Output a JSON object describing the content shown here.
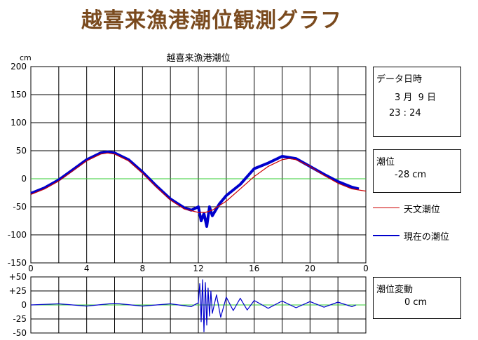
{
  "page": {
    "title": "越喜来漁港潮位観測グラフ"
  },
  "chart_data": [
    {
      "type": "line",
      "title": "越喜来漁港潮位",
      "unit": "cm",
      "xlim": [
        0,
        24
      ],
      "ylim": [
        -150,
        200
      ],
      "x_ticks": [
        "0",
        "4",
        "8",
        "12",
        "16",
        "20",
        "0"
      ],
      "y_ticks": [
        "200",
        "150",
        "100",
        "50",
        "0",
        "-50",
        "-100",
        "-150"
      ],
      "grid": true,
      "legend_placement": "right",
      "series": [
        {
          "name": "天文潮位",
          "color": "#cc0000",
          "x": [
            0,
            1,
            2,
            3,
            4,
            5,
            5.5,
            6,
            7,
            8,
            9,
            10,
            11,
            12,
            12.5,
            13,
            14,
            15,
            16,
            17,
            18,
            18.5,
            19,
            20,
            21,
            22,
            23,
            24
          ],
          "y": [
            -28,
            -18,
            -4,
            14,
            32,
            44,
            46,
            44,
            32,
            10,
            -15,
            -38,
            -54,
            -60,
            -60,
            -56,
            -40,
            -18,
            4,
            22,
            34,
            36,
            34,
            22,
            6,
            -8,
            -18,
            -22
          ]
        },
        {
          "name": "現在の潮位",
          "color": "#0000cc",
          "x": [
            0,
            1,
            2,
            3,
            4,
            5,
            5.5,
            6,
            7,
            8,
            9,
            10,
            11,
            11.5,
            12,
            12.2,
            12.4,
            12.6,
            12.8,
            13,
            13.5,
            14,
            15,
            16,
            17,
            18,
            18.5,
            19,
            20,
            21,
            22,
            23,
            23.5
          ],
          "y": [
            -26,
            -16,
            -2,
            16,
            34,
            46,
            48,
            46,
            34,
            12,
            -13,
            -36,
            -52,
            -56,
            -50,
            -75,
            -62,
            -85,
            -50,
            -66,
            -45,
            -30,
            -10,
            18,
            28,
            40,
            38,
            36,
            22,
            8,
            -5,
            -15,
            -18
          ]
        }
      ]
    },
    {
      "type": "line",
      "xlim": [
        0,
        24
      ],
      "ylim": [
        -50,
        50
      ],
      "y_ticks": [
        "+50",
        "+25",
        "0",
        "-25",
        "-50"
      ],
      "grid": true,
      "series": [
        {
          "name": "潮位変動",
          "color": "#0000cc",
          "x": [
            0,
            2,
            4,
            6,
            8,
            10,
            11.5,
            12,
            12.1,
            12.2,
            12.3,
            12.4,
            12.5,
            12.6,
            12.7,
            12.8,
            12.9,
            13,
            13.3,
            13.6,
            14,
            14.5,
            15,
            15.5,
            16,
            17,
            18,
            19,
            20,
            21,
            22,
            23,
            23.3
          ],
          "y": [
            0,
            2,
            -2,
            3,
            -2,
            2,
            -3,
            4,
            38,
            -30,
            45,
            -48,
            40,
            -36,
            30,
            -20,
            25,
            -15,
            18,
            -22,
            14,
            -10,
            12,
            -9,
            8,
            -6,
            7,
            -5,
            6,
            -4,
            5,
            -3,
            0
          ]
        }
      ]
    }
  ],
  "info_panel": {
    "data_label": "データ日時",
    "date": "3 月  9 日",
    "time": "23 : 24",
    "level_label": "潮位",
    "level_value": "-28 cm",
    "variation_label": "潮位変動",
    "variation_value": "0 cm"
  },
  "legend": {
    "astronomical_label": "天文潮位",
    "current_label": "現在の潮位"
  }
}
